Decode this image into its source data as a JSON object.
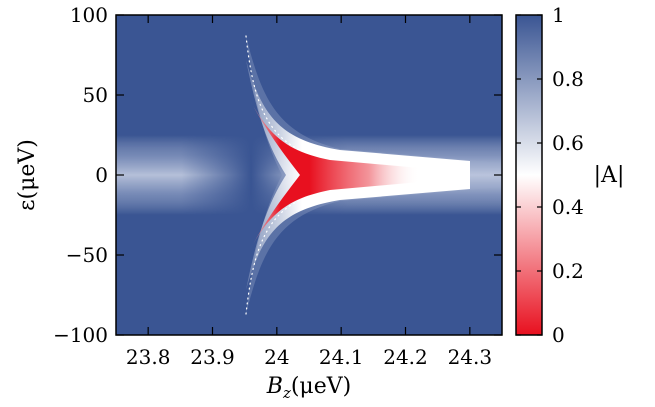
{
  "chart_data": {
    "type": "heatmap",
    "x_ticks": [
      "23.8",
      "23.9",
      "24",
      "24.1",
      "24.2",
      "24.3"
    ],
    "y_ticks": [
      "100",
      "50",
      "0",
      "−50",
      "−100"
    ],
    "colorbar_ticks": [
      "1",
      "0.8",
      "0.6",
      "0.4",
      "0.2",
      "0"
    ],
    "x_values": [
      23.8,
      23.9,
      24.0,
      24.1,
      24.2,
      24.3
    ],
    "y_values": [
      100,
      50,
      0,
      -50,
      -100
    ],
    "colorbar_values": [
      1,
      0.8,
      0.6,
      0.4,
      0.2,
      0
    ],
    "xlim": [
      23.75,
      24.35
    ],
    "ylim": [
      -100,
      100
    ],
    "zlim": [
      0,
      1
    ],
    "colormap": [
      "#e8101f",
      "#ffffff",
      "#3a5593"
    ],
    "xlabel_base": "B",
    "xlabel_sub": "z",
    "xlabel_unit": "(μeV)",
    "ylabel": "ε(μeV)",
    "colorbar_label": "|A|",
    "features": {
      "background_value": 0.95,
      "band_center_y": 0,
      "band_min_value": 0.6,
      "onset_x": 23.95,
      "red_core_x": 24.06,
      "red_core_value": 0.0
    }
  }
}
